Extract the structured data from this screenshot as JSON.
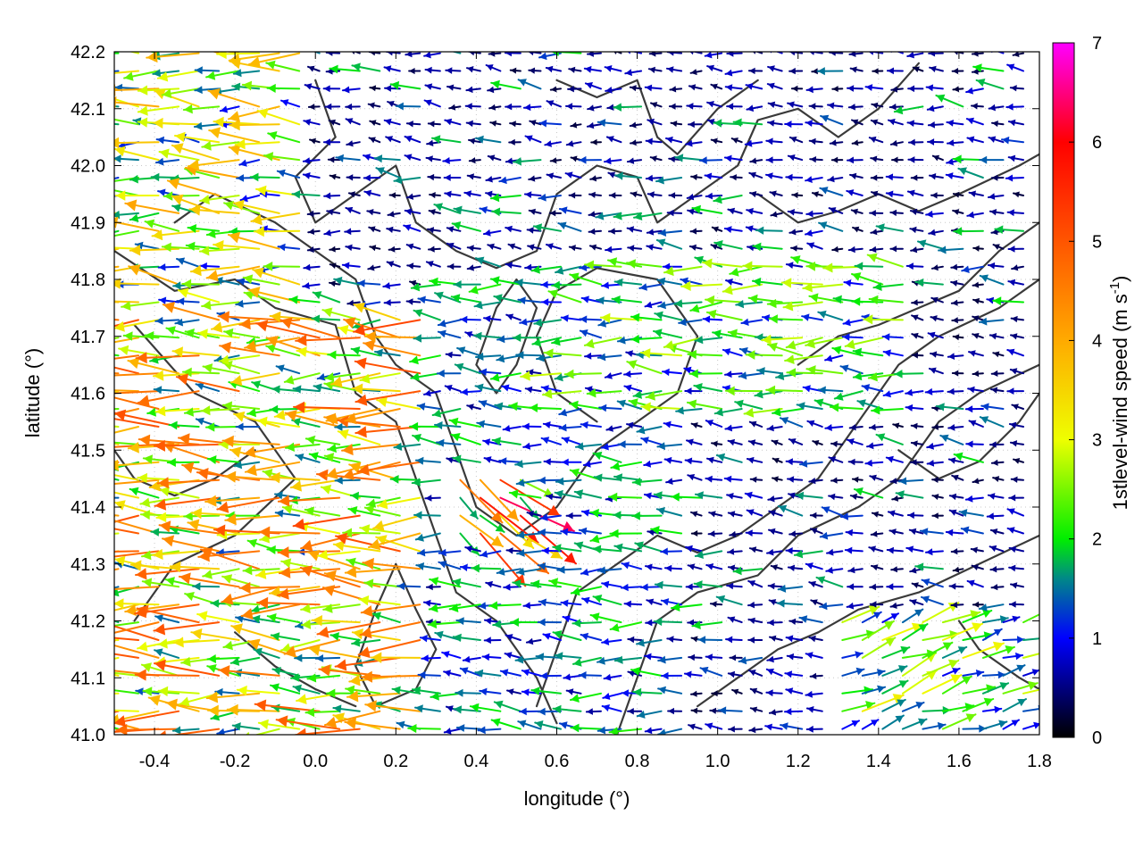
{
  "chart_data": {
    "type": "vector-field",
    "title": "",
    "xlabel": "longitude (°)",
    "ylabel": "latitude (°)",
    "colorbar_label": "1stlevel-wind speed (m s-1)",
    "colorbar_label_parts": {
      "main": "1stlevel-wind speed (m s",
      "sup": "-1",
      "tail": ")"
    },
    "xlim": [
      -0.5,
      1.8
    ],
    "ylim": [
      41.0,
      42.2
    ],
    "color_range": [
      0,
      7
    ],
    "x_ticks": [
      -0.4,
      -0.2,
      0.0,
      0.2,
      0.4,
      0.6,
      0.8,
      1.0,
      1.2,
      1.4,
      1.6,
      1.8
    ],
    "x_tick_labels": [
      "-0.4",
      "-0.2",
      "0.0",
      "0.2",
      "0.4",
      "0.6",
      "0.8",
      "1.0",
      "1.2",
      "1.4",
      "1.6",
      "1.8"
    ],
    "y_ticks": [
      41.0,
      41.1,
      41.2,
      41.3,
      41.4,
      41.5,
      41.6,
      41.7,
      41.8,
      41.9,
      42.0,
      42.1,
      42.2
    ],
    "y_tick_labels": [
      "41.0",
      "41.1",
      "41.2",
      "41.3",
      "41.4",
      "41.5",
      "41.6",
      "41.7",
      "41.8",
      "41.9",
      "42.0",
      "42.1",
      "42.2"
    ],
    "colorbar_ticks": [
      0,
      1,
      2,
      3,
      4,
      5,
      6,
      7
    ],
    "colorbar_tick_labels": [
      "0",
      "1",
      "2",
      "3",
      "4",
      "5",
      "6",
      "7"
    ],
    "colormap_stops": [
      {
        "v": 0,
        "c": "#000000"
      },
      {
        "v": 1,
        "c": "#0000ff"
      },
      {
        "v": 1.6,
        "c": "#008888"
      },
      {
        "v": 2,
        "c": "#00ee00"
      },
      {
        "v": 3,
        "c": "#eeff00"
      },
      {
        "v": 4,
        "c": "#ffaa00"
      },
      {
        "v": 5,
        "c": "#ff5500"
      },
      {
        "v": 6,
        "c": "#ff0000"
      },
      {
        "v": 7,
        "c": "#ff00ff"
      }
    ],
    "grid": true,
    "wind_regions": [
      {
        "lon": [
          -0.5,
          0.3
        ],
        "lat": [
          41.0,
          41.75
        ],
        "speed": 3.6,
        "dir": [
          -1.0,
          0.03
        ]
      },
      {
        "lon": [
          -0.5,
          0.0
        ],
        "lat": [
          41.75,
          42.2
        ],
        "speed": 2.8,
        "dir": [
          -1.0,
          0.05
        ]
      },
      {
        "lon": [
          0.3,
          0.95
        ],
        "lat": [
          41.0,
          41.8
        ],
        "speed": 1.5,
        "dir": [
          -1.0,
          0.05
        ]
      },
      {
        "lon": [
          0.6,
          1.5
        ],
        "lat": [
          41.55,
          41.85
        ],
        "speed": 2.0,
        "dir": [
          -1.0,
          0.03
        ]
      },
      {
        "lon": [
          1.3,
          1.8
        ],
        "lat": [
          41.0,
          41.2
        ],
        "speed": 2.2,
        "dir": [
          0.95,
          0.3
        ]
      },
      {
        "lon": [
          0.35,
          0.55
        ],
        "lat": [
          41.35,
          41.45
        ],
        "speed": 4.5,
        "dir": [
          0.8,
          -0.6
        ]
      }
    ],
    "background_wind": {
      "speed": 0.6,
      "dir": [
        -1.0,
        0.1
      ]
    },
    "terrain_contours": [
      [
        [
          -0.45,
          41.72
        ],
        [
          -0.3,
          41.6
        ],
        [
          -0.15,
          41.55
        ],
        [
          -0.05,
          41.45
        ],
        [
          -0.2,
          41.35
        ],
        [
          -0.35,
          41.3
        ],
        [
          -0.45,
          41.2
        ]
      ],
      [
        [
          -0.5,
          41.85
        ],
        [
          -0.35,
          41.78
        ],
        [
          -0.2,
          41.8
        ],
        [
          -0.1,
          41.75
        ],
        [
          0.05,
          41.72
        ],
        [
          0.1,
          41.6
        ],
        [
          0.2,
          41.55
        ],
        [
          0.25,
          41.45
        ],
        [
          0.3,
          41.35
        ],
        [
          0.35,
          41.25
        ],
        [
          0.45,
          41.2
        ],
        [
          0.55,
          41.1
        ],
        [
          0.6,
          41.02
        ]
      ],
      [
        [
          -0.35,
          41.9
        ],
        [
          -0.25,
          41.95
        ],
        [
          -0.1,
          41.9
        ],
        [
          0.0,
          41.85
        ],
        [
          0.1,
          41.8
        ],
        [
          0.15,
          41.7
        ],
        [
          0.2,
          41.65
        ],
        [
          0.3,
          41.6
        ],
        [
          0.35,
          41.5
        ],
        [
          0.4,
          41.4
        ],
        [
          0.5,
          41.35
        ],
        [
          0.6,
          41.4
        ],
        [
          0.7,
          41.5
        ],
        [
          0.8,
          41.55
        ],
        [
          0.9,
          41.6
        ],
        [
          0.95,
          41.7
        ],
        [
          0.85,
          41.8
        ],
        [
          0.7,
          41.82
        ],
        [
          0.6,
          41.78
        ],
        [
          0.55,
          41.7
        ],
        [
          0.6,
          41.6
        ],
        [
          0.7,
          41.55
        ]
      ],
      [
        [
          0.0,
          42.15
        ],
        [
          0.05,
          42.05
        ],
        [
          -0.05,
          41.98
        ],
        [
          0.0,
          41.9
        ],
        [
          0.1,
          41.95
        ],
        [
          0.2,
          42.0
        ],
        [
          0.25,
          41.9
        ],
        [
          0.35,
          41.85
        ],
        [
          0.45,
          41.82
        ],
        [
          0.55,
          41.85
        ],
        [
          0.6,
          41.95
        ],
        [
          0.7,
          42.0
        ],
        [
          0.8,
          41.98
        ],
        [
          0.85,
          41.9
        ],
        [
          0.95,
          41.95
        ],
        [
          1.05,
          42.0
        ],
        [
          1.1,
          42.08
        ],
        [
          1.2,
          42.1
        ],
        [
          1.3,
          42.05
        ],
        [
          1.4,
          42.1
        ],
        [
          1.5,
          42.18
        ]
      ],
      [
        [
          0.6,
          42.15
        ],
        [
          0.7,
          42.12
        ],
        [
          0.8,
          42.15
        ],
        [
          0.85,
          42.05
        ],
        [
          0.9,
          42.02
        ],
        [
          1.0,
          42.1
        ],
        [
          1.1,
          42.15
        ]
      ],
      [
        [
          0.55,
          41.05
        ],
        [
          0.6,
          41.15
        ],
        [
          0.65,
          41.25
        ],
        [
          0.75,
          41.3
        ],
        [
          0.85,
          41.35
        ],
        [
          0.95,
          41.32
        ],
        [
          1.05,
          41.35
        ],
        [
          1.15,
          41.4
        ],
        [
          1.25,
          41.45
        ],
        [
          1.35,
          41.55
        ],
        [
          1.45,
          41.65
        ],
        [
          1.55,
          41.7
        ],
        [
          1.7,
          41.75
        ],
        [
          1.8,
          41.8
        ]
      ],
      [
        [
          0.75,
          41.0
        ],
        [
          0.8,
          41.1
        ],
        [
          0.85,
          41.2
        ],
        [
          0.95,
          41.25
        ],
        [
          1.1,
          41.28
        ],
        [
          1.2,
          41.35
        ],
        [
          1.35,
          41.4
        ],
        [
          1.45,
          41.45
        ],
        [
          1.55,
          41.55
        ],
        [
          1.65,
          41.6
        ],
        [
          1.8,
          41.65
        ]
      ],
      [
        [
          0.95,
          41.05
        ],
        [
          1.05,
          41.1
        ],
        [
          1.15,
          41.15
        ],
        [
          1.25,
          41.18
        ],
        [
          1.35,
          41.22
        ],
        [
          1.5,
          41.25
        ],
        [
          1.65,
          41.3
        ],
        [
          1.8,
          41.35
        ]
      ],
      [
        [
          0.2,
          41.3
        ],
        [
          0.25,
          41.22
        ],
        [
          0.3,
          41.15
        ],
        [
          0.25,
          41.08
        ],
        [
          0.15,
          41.05
        ],
        [
          0.1,
          41.12
        ],
        [
          0.15,
          41.22
        ],
        [
          0.2,
          41.3
        ]
      ],
      [
        [
          1.45,
          41.5
        ],
        [
          1.55,
          41.45
        ],
        [
          1.65,
          41.48
        ],
        [
          1.75,
          41.55
        ],
        [
          1.8,
          41.6
        ]
      ],
      [
        [
          1.2,
          41.65
        ],
        [
          1.3,
          41.7
        ],
        [
          1.4,
          41.72
        ],
        [
          1.5,
          41.75
        ],
        [
          1.6,
          41.78
        ],
        [
          1.7,
          41.85
        ],
        [
          1.8,
          41.9
        ]
      ],
      [
        [
          1.1,
          41.95
        ],
        [
          1.2,
          41.9
        ],
        [
          1.3,
          41.92
        ],
        [
          1.4,
          41.95
        ],
        [
          1.5,
          41.92
        ],
        [
          1.6,
          41.95
        ],
        [
          1.75,
          42.0
        ],
        [
          1.8,
          42.02
        ]
      ],
      [
        [
          -0.2,
          41.18
        ],
        [
          -0.1,
          41.12
        ],
        [
          0.0,
          41.08
        ],
        [
          0.1,
          41.05
        ]
      ],
      [
        [
          0.4,
          41.65
        ],
        [
          0.45,
          41.75
        ],
        [
          0.5,
          41.8
        ],
        [
          0.55,
          41.75
        ],
        [
          0.5,
          41.65
        ],
        [
          0.45,
          41.6
        ],
        [
          0.4,
          41.65
        ]
      ],
      [
        [
          -0.5,
          41.5
        ],
        [
          -0.45,
          41.45
        ],
        [
          -0.35,
          41.42
        ],
        [
          -0.25,
          41.45
        ],
        [
          -0.15,
          41.5
        ]
      ],
      [
        [
          1.6,
          41.2
        ],
        [
          1.65,
          41.15
        ],
        [
          1.75,
          41.1
        ],
        [
          1.8,
          41.08
        ]
      ]
    ]
  }
}
